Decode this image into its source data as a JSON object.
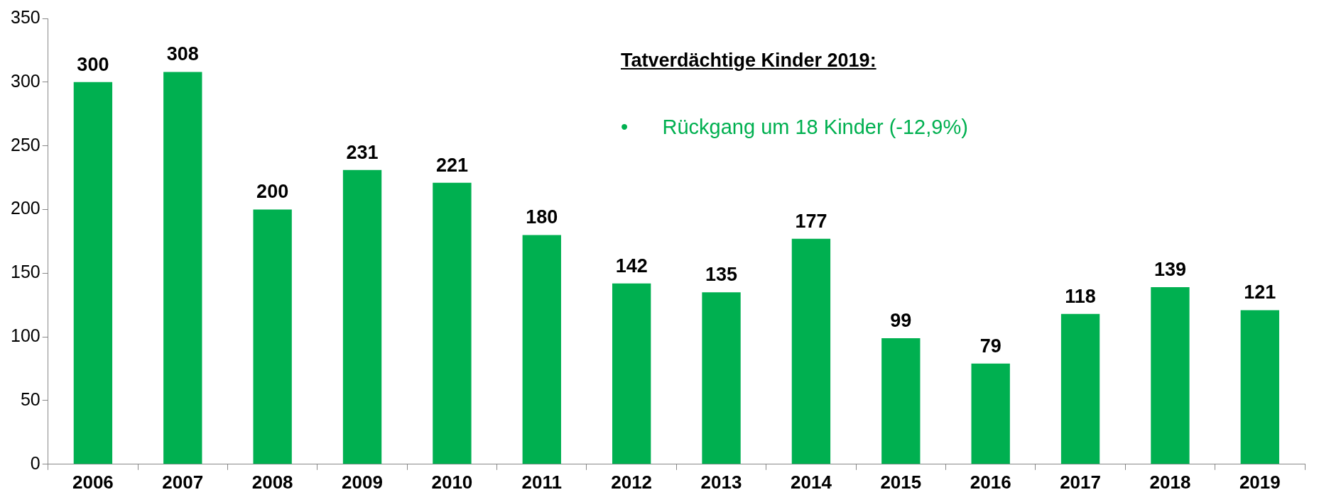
{
  "chart_data": {
    "type": "bar",
    "categories": [
      "2006",
      "2007",
      "2008",
      "2009",
      "2010",
      "2011",
      "2012",
      "2013",
      "2014",
      "2015",
      "2016",
      "2017",
      "2018",
      "2019"
    ],
    "values": [
      300,
      308,
      200,
      231,
      221,
      180,
      142,
      135,
      177,
      99,
      79,
      118,
      139,
      121
    ],
    "color": "#00b050",
    "ylim": [
      0,
      350
    ],
    "yticks": [
      0,
      50,
      100,
      150,
      200,
      250,
      300,
      350
    ],
    "grid": false,
    "data_labels": true,
    "legend": false,
    "annotations": [
      "Tatverdächtige Kinder 2019:",
      "•      Rückgang um 18 Kinder (-12,9%)"
    ]
  }
}
